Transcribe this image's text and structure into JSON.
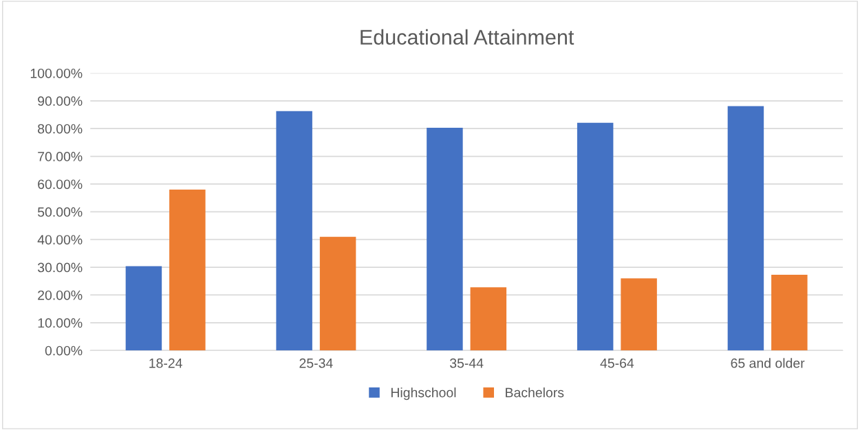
{
  "chart_data": {
    "type": "bar",
    "title": "Educational Attainment",
    "categories": [
      "18-24",
      "25-34",
      "35-44",
      "45-64",
      "65 and older"
    ],
    "series": [
      {
        "name": "Highschool",
        "color": "#4472c4",
        "values": [
          30.4,
          86.3,
          80.3,
          82.1,
          88.1
        ]
      },
      {
        "name": "Bachelors",
        "color": "#ed7d31",
        "values": [
          58.0,
          41.0,
          22.8,
          26.0,
          27.3
        ]
      }
    ],
    "ylim": [
      0,
      100
    ],
    "yticks": [
      {
        "value": 0,
        "label": "0.00%"
      },
      {
        "value": 10,
        "label": "10.00%"
      },
      {
        "value": 20,
        "label": "20.00%"
      },
      {
        "value": 30,
        "label": "30.00%"
      },
      {
        "value": 40,
        "label": "40.00%"
      },
      {
        "value": 50,
        "label": "50.00%"
      },
      {
        "value": 60,
        "label": "60.00%"
      },
      {
        "value": 70,
        "label": "70.00%"
      },
      {
        "value": 80,
        "label": "80.00%"
      },
      {
        "value": 90,
        "label": "90.00%"
      },
      {
        "value": 100,
        "label": "100.00%"
      }
    ],
    "grid": "y",
    "legend": "bottom"
  }
}
